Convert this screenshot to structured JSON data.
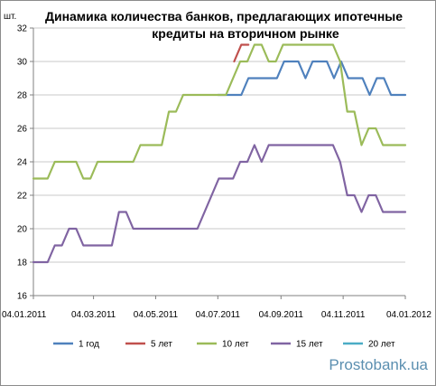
{
  "watermark": "Prostobank.ua",
  "chart_data": {
    "type": "line",
    "title_line1": "Динамика количества банков, предлагающих ипотечные",
    "title_line2": "кредиты на вторичном рынке",
    "ylabel": "шт.",
    "ylim": [
      16,
      32
    ],
    "yticks": [
      16,
      18,
      20,
      22,
      24,
      26,
      28,
      30,
      32
    ],
    "xlim": [
      "2011-01-04",
      "2012-01-04"
    ],
    "xticks": [
      "04.01.2011",
      "04.03.2011",
      "04.05.2011",
      "04.07.2011",
      "04.09.2011",
      "04.11.2011",
      "04.01.2012"
    ],
    "grid": "horizontal",
    "legend_position": "bottom",
    "series": [
      {
        "name": "1 год",
        "color": "#4f81bd",
        "points": [
          [
            "2011-07-04",
            28
          ],
          [
            "2011-07-14",
            28
          ],
          [
            "2011-07-20",
            28
          ],
          [
            "2011-07-27",
            28
          ],
          [
            "2011-08-03",
            29
          ],
          [
            "2011-08-10",
            29
          ],
          [
            "2011-08-17",
            29
          ],
          [
            "2011-08-24",
            29
          ],
          [
            "2011-08-31",
            29
          ],
          [
            "2011-09-07",
            30
          ],
          [
            "2011-09-14",
            30
          ],
          [
            "2011-09-21",
            30
          ],
          [
            "2011-09-28",
            29
          ],
          [
            "2011-10-05",
            30
          ],
          [
            "2011-10-12",
            30
          ],
          [
            "2011-10-19",
            30
          ],
          [
            "2011-10-26",
            29
          ],
          [
            "2011-11-02",
            30
          ],
          [
            "2011-11-09",
            29
          ],
          [
            "2011-11-16",
            29
          ],
          [
            "2011-11-23",
            29
          ],
          [
            "2011-11-30",
            28
          ],
          [
            "2011-12-07",
            29
          ],
          [
            "2011-12-14",
            29
          ],
          [
            "2011-12-21",
            28
          ],
          [
            "2011-12-28",
            28
          ],
          [
            "2012-01-04",
            28
          ]
        ]
      },
      {
        "name": "5 лет",
        "color": "#c0504d",
        "points": [
          [
            "2011-07-20",
            30
          ],
          [
            "2011-07-27",
            31
          ],
          [
            "2011-08-03",
            31
          ]
        ]
      },
      {
        "name": "10 лет",
        "color": "#9bbb59",
        "points": [
          [
            "2011-01-04",
            23
          ],
          [
            "2011-01-11",
            23
          ],
          [
            "2011-01-18",
            23
          ],
          [
            "2011-01-25",
            24
          ],
          [
            "2011-02-01",
            24
          ],
          [
            "2011-02-08",
            24
          ],
          [
            "2011-02-15",
            24
          ],
          [
            "2011-02-22",
            23
          ],
          [
            "2011-03-01",
            23
          ],
          [
            "2011-03-08",
            24
          ],
          [
            "2011-03-15",
            24
          ],
          [
            "2011-03-22",
            24
          ],
          [
            "2011-03-29",
            24
          ],
          [
            "2011-04-05",
            24
          ],
          [
            "2011-04-12",
            24
          ],
          [
            "2011-04-19",
            25
          ],
          [
            "2011-04-26",
            25
          ],
          [
            "2011-05-03",
            25
          ],
          [
            "2011-05-10",
            25
          ],
          [
            "2011-05-17",
            27
          ],
          [
            "2011-05-24",
            27
          ],
          [
            "2011-05-31",
            28
          ],
          [
            "2011-06-07",
            28
          ],
          [
            "2011-06-14",
            28
          ],
          [
            "2011-06-21",
            28
          ],
          [
            "2011-06-28",
            28
          ],
          [
            "2011-07-05",
            28
          ],
          [
            "2011-07-12",
            28
          ],
          [
            "2011-07-19",
            29
          ],
          [
            "2011-07-26",
            30
          ],
          [
            "2011-08-02",
            30
          ],
          [
            "2011-08-09",
            31
          ],
          [
            "2011-08-16",
            31
          ],
          [
            "2011-08-23",
            30
          ],
          [
            "2011-08-30",
            30
          ],
          [
            "2011-09-06",
            31
          ],
          [
            "2011-09-13",
            31
          ],
          [
            "2011-09-20",
            31
          ],
          [
            "2011-09-27",
            31
          ],
          [
            "2011-10-04",
            31
          ],
          [
            "2011-10-11",
            31
          ],
          [
            "2011-10-18",
            31
          ],
          [
            "2011-10-25",
            31
          ],
          [
            "2011-11-01",
            30
          ],
          [
            "2011-11-08",
            27
          ],
          [
            "2011-11-15",
            27
          ],
          [
            "2011-11-22",
            25
          ],
          [
            "2011-11-29",
            26
          ],
          [
            "2011-12-06",
            26
          ],
          [
            "2011-12-13",
            25
          ],
          [
            "2011-12-20",
            25
          ],
          [
            "2011-12-27",
            25
          ],
          [
            "2012-01-04",
            25
          ]
        ]
      },
      {
        "name": "15 лет",
        "color": "#8064a2",
        "points": [
          [
            "2011-01-04",
            18
          ],
          [
            "2011-01-11",
            18
          ],
          [
            "2011-01-18",
            18
          ],
          [
            "2011-01-25",
            19
          ],
          [
            "2011-02-01",
            19
          ],
          [
            "2011-02-08",
            20
          ],
          [
            "2011-02-15",
            20
          ],
          [
            "2011-02-22",
            19
          ],
          [
            "2011-03-01",
            19
          ],
          [
            "2011-03-08",
            19
          ],
          [
            "2011-03-15",
            19
          ],
          [
            "2011-03-22",
            19
          ],
          [
            "2011-03-29",
            21
          ],
          [
            "2011-04-05",
            21
          ],
          [
            "2011-04-12",
            20
          ],
          [
            "2011-04-19",
            20
          ],
          [
            "2011-04-26",
            20
          ],
          [
            "2011-05-03",
            20
          ],
          [
            "2011-05-10",
            20
          ],
          [
            "2011-05-17",
            20
          ],
          [
            "2011-05-24",
            20
          ],
          [
            "2011-05-31",
            20
          ],
          [
            "2011-06-07",
            20
          ],
          [
            "2011-06-14",
            20
          ],
          [
            "2011-06-21",
            21
          ],
          [
            "2011-06-28",
            22
          ],
          [
            "2011-07-05",
            23
          ],
          [
            "2011-07-12",
            23
          ],
          [
            "2011-07-19",
            23
          ],
          [
            "2011-07-26",
            24
          ],
          [
            "2011-08-02",
            24
          ],
          [
            "2011-08-09",
            25
          ],
          [
            "2011-08-16",
            24
          ],
          [
            "2011-08-23",
            25
          ],
          [
            "2011-08-30",
            25
          ],
          [
            "2011-09-06",
            25
          ],
          [
            "2011-09-13",
            25
          ],
          [
            "2011-09-20",
            25
          ],
          [
            "2011-09-27",
            25
          ],
          [
            "2011-10-04",
            25
          ],
          [
            "2011-10-11",
            25
          ],
          [
            "2011-10-18",
            25
          ],
          [
            "2011-10-25",
            25
          ],
          [
            "2011-11-01",
            24
          ],
          [
            "2011-11-08",
            22
          ],
          [
            "2011-11-15",
            22
          ],
          [
            "2011-11-22",
            21
          ],
          [
            "2011-11-29",
            22
          ],
          [
            "2011-12-06",
            22
          ],
          [
            "2011-12-13",
            21
          ],
          [
            "2011-12-20",
            21
          ],
          [
            "2011-12-27",
            21
          ],
          [
            "2012-01-04",
            21
          ]
        ]
      },
      {
        "name": "20 лет",
        "color": "#4bacc6",
        "points": []
      }
    ]
  }
}
